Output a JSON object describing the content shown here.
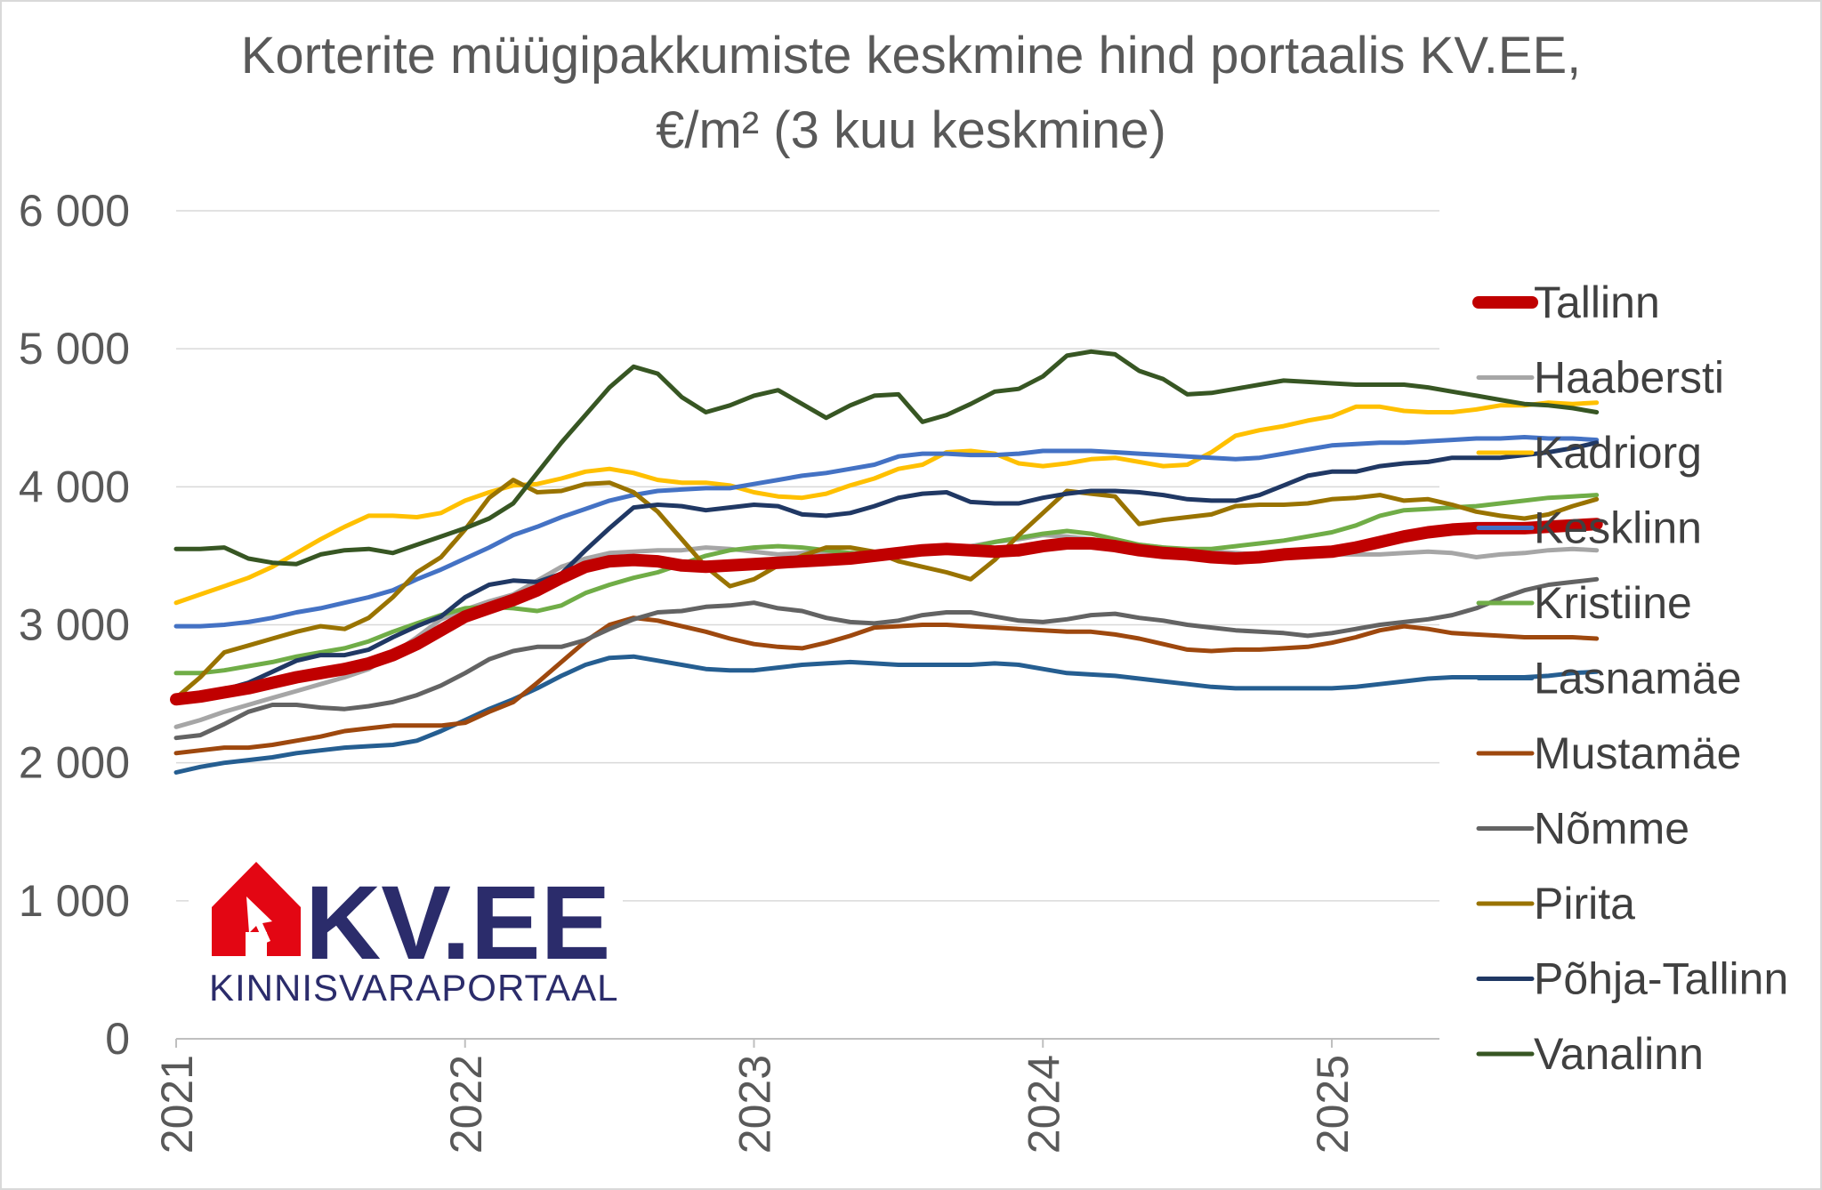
{
  "chart_data": {
    "type": "line",
    "title": [
      "Korterite müügipakkumiste keskmine hind portaalis KV.EE,",
      "€/m² (3 kuu keskmine)"
    ],
    "xlabel": "",
    "ylabel": "",
    "ylim": [
      0,
      6000
    ],
    "yticks": [
      0,
      1000,
      2000,
      3000,
      4000,
      5000,
      6000
    ],
    "ytick_labels": [
      "0",
      "1 000",
      "2 000",
      "3 000",
      "4 000",
      "5 000",
      "6 000"
    ],
    "xlim": [
      2021.0,
      2025.75
    ],
    "xticks": [
      2021,
      2022,
      2023,
      2024,
      2025
    ],
    "xtick_labels": [
      "2021",
      "2022",
      "2023",
      "2024",
      "2025"
    ],
    "grid": "horizontal",
    "legend_position": "right",
    "x_start": 2021.0,
    "x_step_months": 1,
    "series": [
      {
        "name": "Tallinn",
        "color": "#c00000",
        "width": 14,
        "values": [
          2460,
          2480,
          2510,
          2540,
          2580,
          2620,
          2650,
          2680,
          2720,
          2780,
          2860,
          2960,
          3060,
          3120,
          3180,
          3250,
          3340,
          3420,
          3460,
          3470,
          3460,
          3430,
          3420,
          3430,
          3440,
          3450,
          3460,
          3470,
          3480,
          3500,
          3520,
          3540,
          3550,
          3540,
          3530,
          3540,
          3570,
          3590,
          3590,
          3570,
          3540,
          3520,
          3510,
          3490,
          3480,
          3490,
          3510,
          3520,
          3530,
          3560,
          3600,
          3640,
          3670,
          3690,
          3700,
          3700,
          3700,
          3710,
          3720,
          3730
        ]
      },
      {
        "name": "Haabersti",
        "color": "#a6a6a6",
        "width": 5,
        "values": [
          2260,
          2310,
          2370,
          2420,
          2470,
          2520,
          2570,
          2620,
          2680,
          2790,
          2910,
          3040,
          3110,
          3170,
          3220,
          3320,
          3420,
          3480,
          3520,
          3530,
          3540,
          3540,
          3560,
          3550,
          3530,
          3510,
          3520,
          3530,
          3520,
          3510,
          3520,
          3530,
          3550,
          3570,
          3600,
          3620,
          3650,
          3640,
          3620,
          3600,
          3580,
          3560,
          3540,
          3530,
          3520,
          3510,
          3510,
          3510,
          3510,
          3510,
          3510,
          3520,
          3530,
          3520,
          3490,
          3510,
          3520,
          3540,
          3550,
          3540
        ]
      },
      {
        "name": "Kadriorg",
        "color": "#ffc000",
        "width": 5,
        "values": [
          3160,
          3220,
          3280,
          3340,
          3420,
          3520,
          3620,
          3710,
          3790,
          3790,
          3780,
          3810,
          3900,
          3960,
          4010,
          4020,
          4060,
          4110,
          4130,
          4100,
          4050,
          4030,
          4030,
          4010,
          3960,
          3930,
          3920,
          3950,
          4010,
          4060,
          4130,
          4160,
          4250,
          4260,
          4240,
          4170,
          4150,
          4170,
          4200,
          4210,
          4180,
          4150,
          4160,
          4250,
          4370,
          4410,
          4440,
          4480,
          4510,
          4580,
          4580,
          4550,
          4540,
          4540,
          4560,
          4590,
          4590,
          4610,
          4600,
          4610
        ]
      },
      {
        "name": "Kesklinn",
        "color": "#4472c4",
        "width": 5,
        "values": [
          2990,
          2990,
          3000,
          3020,
          3050,
          3090,
          3120,
          3160,
          3200,
          3250,
          3330,
          3400,
          3480,
          3560,
          3650,
          3710,
          3780,
          3840,
          3900,
          3940,
          3970,
          3980,
          3990,
          3990,
          4020,
          4050,
          4080,
          4100,
          4130,
          4160,
          4220,
          4240,
          4240,
          4230,
          4230,
          4240,
          4260,
          4260,
          4260,
          4250,
          4240,
          4230,
          4220,
          4210,
          4200,
          4210,
          4240,
          4270,
          4300,
          4310,
          4320,
          4320,
          4330,
          4340,
          4350,
          4350,
          4360,
          4350,
          4350,
          4340
        ]
      },
      {
        "name": "Kristiine",
        "color": "#70ad47",
        "width": 5,
        "values": [
          2650,
          2650,
          2670,
          2700,
          2730,
          2770,
          2800,
          2830,
          2880,
          2950,
          3010,
          3070,
          3120,
          3130,
          3120,
          3100,
          3140,
          3230,
          3290,
          3340,
          3380,
          3440,
          3500,
          3540,
          3560,
          3570,
          3560,
          3540,
          3520,
          3510,
          3520,
          3520,
          3530,
          3560,
          3600,
          3630,
          3660,
          3680,
          3660,
          3620,
          3580,
          3560,
          3550,
          3550,
          3570,
          3590,
          3610,
          3640,
          3670,
          3720,
          3790,
          3830,
          3840,
          3850,
          3860,
          3880,
          3900,
          3920,
          3930,
          3940
        ]
      },
      {
        "name": "Lasnamäe",
        "color": "#255e91",
        "width": 5,
        "values": [
          1930,
          1970,
          2000,
          2020,
          2040,
          2070,
          2090,
          2110,
          2120,
          2130,
          2160,
          2230,
          2310,
          2390,
          2460,
          2540,
          2630,
          2710,
          2760,
          2770,
          2740,
          2710,
          2680,
          2670,
          2670,
          2690,
          2710,
          2720,
          2730,
          2720,
          2710,
          2710,
          2710,
          2710,
          2720,
          2710,
          2680,
          2650,
          2640,
          2630,
          2610,
          2590,
          2570,
          2550,
          2540,
          2540,
          2540,
          2540,
          2540,
          2550,
          2570,
          2590,
          2610,
          2620,
          2620,
          2620,
          2620,
          2630,
          2650,
          2660
        ]
      },
      {
        "name": "Mustamäe",
        "color": "#9e480e",
        "width": 5,
        "values": [
          2070,
          2090,
          2110,
          2110,
          2130,
          2160,
          2190,
          2230,
          2250,
          2270,
          2270,
          2270,
          2290,
          2370,
          2440,
          2580,
          2730,
          2880,
          3000,
          3050,
          3030,
          2990,
          2950,
          2900,
          2860,
          2840,
          2830,
          2870,
          2920,
          2980,
          2990,
          3000,
          3000,
          2990,
          2980,
          2970,
          2960,
          2950,
          2950,
          2930,
          2900,
          2860,
          2820,
          2810,
          2820,
          2820,
          2830,
          2840,
          2870,
          2910,
          2960,
          2990,
          2970,
          2940,
          2930,
          2920,
          2910,
          2910,
          2910,
          2900
        ]
      },
      {
        "name": "Nõmme",
        "color": "#636363",
        "width": 5,
        "values": [
          2180,
          2200,
          2280,
          2370,
          2420,
          2420,
          2400,
          2390,
          2410,
          2440,
          2490,
          2560,
          2650,
          2750,
          2810,
          2840,
          2840,
          2890,
          2970,
          3040,
          3090,
          3100,
          3130,
          3140,
          3160,
          3120,
          3100,
          3050,
          3020,
          3010,
          3030,
          3070,
          3090,
          3090,
          3060,
          3030,
          3020,
          3040,
          3070,
          3080,
          3050,
          3030,
          3000,
          2980,
          2960,
          2950,
          2940,
          2920,
          2940,
          2970,
          3000,
          3020,
          3040,
          3070,
          3120,
          3190,
          3250,
          3290,
          3310,
          3330
        ]
      },
      {
        "name": "Pirita",
        "color": "#997300",
        "width": 5,
        "values": [
          2470,
          2620,
          2800,
          2850,
          2900,
          2950,
          2990,
          2970,
          3050,
          3200,
          3380,
          3490,
          3690,
          3920,
          4050,
          3960,
          3970,
          4020,
          4030,
          3960,
          3820,
          3620,
          3420,
          3280,
          3330,
          3430,
          3500,
          3560,
          3560,
          3530,
          3460,
          3420,
          3380,
          3330,
          3470,
          3650,
          3810,
          3970,
          3950,
          3930,
          3730,
          3760,
          3780,
          3800,
          3860,
          3870,
          3870,
          3880,
          3910,
          3920,
          3940,
          3900,
          3910,
          3870,
          3820,
          3790,
          3770,
          3800,
          3860,
          3910
        ]
      },
      {
        "name": "Põhja-Tallinn",
        "color": "#203864",
        "width": 5,
        "values": [
          2480,
          2500,
          2530,
          2580,
          2660,
          2740,
          2780,
          2780,
          2820,
          2910,
          2990,
          3060,
          3200,
          3290,
          3320,
          3310,
          3370,
          3540,
          3700,
          3850,
          3870,
          3860,
          3830,
          3850,
          3870,
          3860,
          3800,
          3790,
          3810,
          3860,
          3920,
          3950,
          3960,
          3890,
          3880,
          3880,
          3920,
          3950,
          3970,
          3970,
          3960,
          3940,
          3910,
          3900,
          3900,
          3940,
          4010,
          4080,
          4110,
          4110,
          4150,
          4170,
          4180,
          4210,
          4210,
          4210,
          4230,
          4250,
          4280,
          4320
        ]
      },
      {
        "name": "Vanalinn",
        "color": "#375623",
        "width": 5,
        "values": [
          3550,
          3550,
          3560,
          3480,
          3450,
          3440,
          3510,
          3540,
          3550,
          3520,
          3580,
          3640,
          3700,
          3770,
          3880,
          4100,
          4320,
          4520,
          4720,
          4870,
          4820,
          4650,
          4540,
          4590,
          4660,
          4700,
          4600,
          4500,
          4590,
          4660,
          4670,
          4470,
          4520,
          4600,
          4690,
          4710,
          4800,
          4950,
          4980,
          4960,
          4840,
          4780,
          4670,
          4680,
          4710,
          4740,
          4770,
          4760,
          4750,
          4740,
          4740,
          4740,
          4720,
          4690,
          4660,
          4630,
          4600,
          4590,
          4570,
          4540
        ]
      }
    ]
  },
  "logo": {
    "main_text": "KV.EE",
    "sub_text": "KINNISVARAPORTAAL",
    "colors": {
      "house": "#e30613",
      "text": "#2b2c6b"
    }
  }
}
